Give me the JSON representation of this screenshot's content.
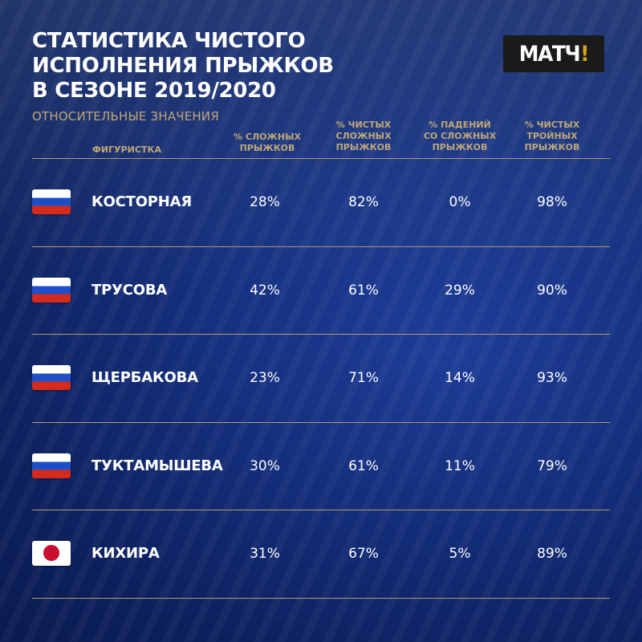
{
  "header": {
    "title_lines": [
      "СТАТИСТИКА ЧИСТОГО",
      "ИСПОЛНЕНИЯ ПРЫЖКОВ",
      "В СЕЗОНЕ 2019/2020"
    ],
    "subtitle": "ОТНОСИТЕЛЬНЫЕ ЗНАЧЕНИЯ",
    "logo": {
      "text": "МАТЧ",
      "mark": "!"
    }
  },
  "table": {
    "columns": [
      {
        "label": "ФИГУРИСТКА"
      },
      {
        "label": "% СЛОЖНЫХ\nПРЫЖКОВ"
      },
      {
        "label": "% ЧИСТЫХ\nСЛОЖНЫХ\nПРЫЖКОВ"
      },
      {
        "label": "% ПАДЕНИЙ\nСО СЛОЖНЫХ\nПРЫЖКОВ"
      },
      {
        "label": "% ЧИСТЫХ\nТРОЙНЫХ\nПРЫЖКОВ"
      }
    ],
    "rows": [
      {
        "flag": "russia-flag-icon",
        "name": "КОСТОРНАЯ",
        "values": [
          "28%",
          "82%",
          "0%",
          "98%"
        ]
      },
      {
        "flag": "russia-flag-icon",
        "name": "ТРУСОВА",
        "values": [
          "42%",
          "61%",
          "29%",
          "90%"
        ]
      },
      {
        "flag": "russia-flag-icon",
        "name": "ЩЕРБАКОВА",
        "values": [
          "23%",
          "71%",
          "14%",
          "93%"
        ]
      },
      {
        "flag": "russia-flag-icon",
        "name": "ТУКТАМЫШЕВА",
        "values": [
          "30%",
          "61%",
          "11%",
          "79%"
        ]
      },
      {
        "flag": "japan-flag-icon",
        "name": "КИХИРА",
        "values": [
          "31%",
          "67%",
          "5%",
          "89%"
        ]
      }
    ]
  },
  "colors": {
    "background": "#15307f",
    "accent_gold": "#c0a878",
    "rule": "#b39a6e",
    "logo_bang": "#d9a021"
  }
}
